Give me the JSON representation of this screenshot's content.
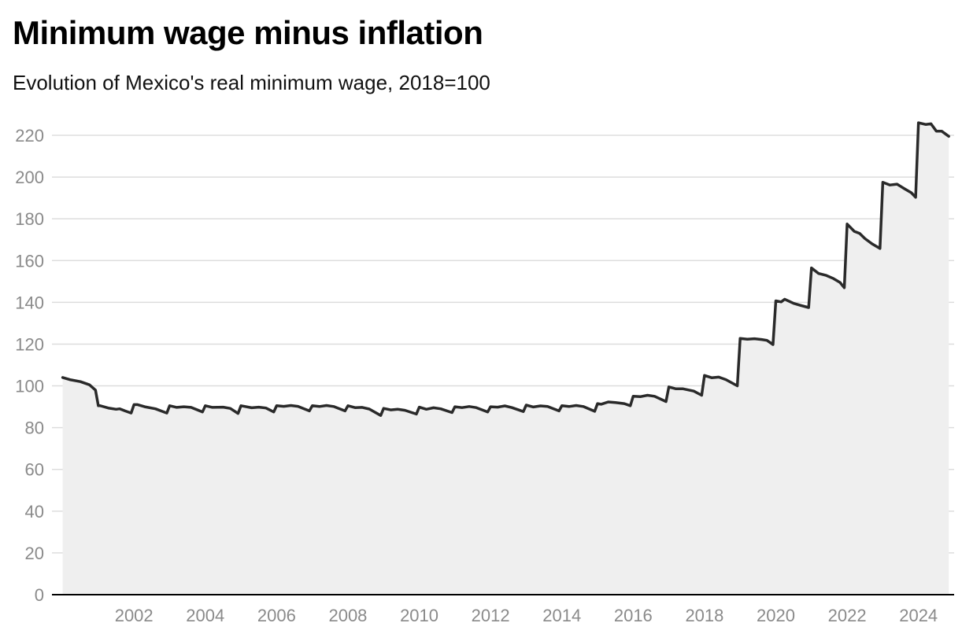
{
  "chart_data": {
    "type": "line",
    "title": "Minimum wage minus inflation",
    "subtitle": "Evolution of Mexico's real minimum wage, 2018=100",
    "xlabel": "",
    "ylabel": "",
    "xlim": [
      1999.7,
      2025.0
    ],
    "ylim": [
      0,
      220
    ],
    "y_ticks": [
      0,
      20,
      40,
      60,
      80,
      100,
      120,
      140,
      160,
      180,
      200,
      220
    ],
    "x_ticks": [
      2002,
      2004,
      2006,
      2008,
      2010,
      2012,
      2014,
      2016,
      2018,
      2020,
      2022,
      2024
    ],
    "grid": true,
    "legend": "none",
    "area_fill": true,
    "colors": {
      "line": "#2a2a2a",
      "fill": "#efefef",
      "grid": "#dddddd",
      "axis": "#000000",
      "tick_text": "#8a8a8a"
    },
    "series": [
      {
        "values_as_year_value_pairs": true,
        "points": [
          [
            2000.0,
            104
          ],
          [
            2000.2,
            103
          ],
          [
            2000.5,
            102
          ],
          [
            2000.75,
            100.5
          ],
          [
            2000.92,
            98
          ],
          [
            2001.0,
            90.5
          ],
          [
            2001.05,
            90.5
          ],
          [
            2001.3,
            89.3
          ],
          [
            2001.5,
            88.8
          ],
          [
            2001.6,
            89
          ],
          [
            2001.75,
            88
          ],
          [
            2001.92,
            87
          ],
          [
            2002.0,
            91
          ],
          [
            2002.1,
            91
          ],
          [
            2002.3,
            90
          ],
          [
            2002.6,
            89
          ],
          [
            2002.92,
            87
          ],
          [
            2003.0,
            90.5
          ],
          [
            2003.2,
            89.7
          ],
          [
            2003.4,
            90
          ],
          [
            2003.6,
            89.7
          ],
          [
            2003.92,
            87.5
          ],
          [
            2004.0,
            90.5
          ],
          [
            2004.2,
            89.7
          ],
          [
            2004.5,
            89.8
          ],
          [
            2004.7,
            89.2
          ],
          [
            2004.92,
            86.8
          ],
          [
            2005.0,
            90.5
          ],
          [
            2005.3,
            89.5
          ],
          [
            2005.5,
            89.8
          ],
          [
            2005.7,
            89.4
          ],
          [
            2005.92,
            87.5
          ],
          [
            2006.0,
            90.5
          ],
          [
            2006.2,
            90.2
          ],
          [
            2006.4,
            90.6
          ],
          [
            2006.6,
            90.2
          ],
          [
            2006.92,
            88
          ],
          [
            2007.0,
            90.5
          ],
          [
            2007.2,
            90.1
          ],
          [
            2007.4,
            90.6
          ],
          [
            2007.6,
            90.1
          ],
          [
            2007.92,
            88
          ],
          [
            2008.0,
            90.5
          ],
          [
            2008.2,
            89.6
          ],
          [
            2008.4,
            89.7
          ],
          [
            2008.6,
            88.9
          ],
          [
            2008.92,
            85.8
          ],
          [
            2009.0,
            89.2
          ],
          [
            2009.2,
            88.5
          ],
          [
            2009.4,
            88.8
          ],
          [
            2009.6,
            88.3
          ],
          [
            2009.92,
            86.5
          ],
          [
            2010.0,
            89.8
          ],
          [
            2010.2,
            88.8
          ],
          [
            2010.4,
            89.5
          ],
          [
            2010.6,
            89
          ],
          [
            2010.92,
            87.2
          ],
          [
            2011.0,
            90
          ],
          [
            2011.2,
            89.6
          ],
          [
            2011.4,
            90.1
          ],
          [
            2011.6,
            89.6
          ],
          [
            2011.92,
            87.5
          ],
          [
            2012.0,
            90
          ],
          [
            2012.2,
            89.8
          ],
          [
            2012.4,
            90.4
          ],
          [
            2012.6,
            89.6
          ],
          [
            2012.92,
            87.7
          ],
          [
            2013.0,
            90.8
          ],
          [
            2013.2,
            89.9
          ],
          [
            2013.4,
            90.4
          ],
          [
            2013.6,
            90.1
          ],
          [
            2013.92,
            88
          ],
          [
            2014.0,
            90.5
          ],
          [
            2014.2,
            90.1
          ],
          [
            2014.4,
            90.6
          ],
          [
            2014.6,
            90.1
          ],
          [
            2014.92,
            87.8
          ],
          [
            2015.0,
            91.5
          ],
          [
            2015.1,
            91.2
          ],
          [
            2015.3,
            92.3
          ],
          [
            2015.5,
            92
          ],
          [
            2015.75,
            91.5
          ],
          [
            2015.92,
            90.5
          ],
          [
            2016.0,
            95
          ],
          [
            2016.2,
            94.8
          ],
          [
            2016.4,
            95.5
          ],
          [
            2016.6,
            95
          ],
          [
            2016.92,
            92.5
          ],
          [
            2017.0,
            99.5
          ],
          [
            2017.2,
            98.6
          ],
          [
            2017.4,
            98.6
          ],
          [
            2017.7,
            97.5
          ],
          [
            2017.92,
            95.5
          ],
          [
            2018.0,
            105
          ],
          [
            2018.2,
            103.9
          ],
          [
            2018.4,
            104.2
          ],
          [
            2018.6,
            103
          ],
          [
            2018.92,
            100
          ],
          [
            2019.0,
            122.7
          ],
          [
            2019.2,
            122.3
          ],
          [
            2019.4,
            122.6
          ],
          [
            2019.6,
            122.2
          ],
          [
            2019.75,
            121.8
          ],
          [
            2019.92,
            119.8
          ],
          [
            2020.0,
            140.7
          ],
          [
            2020.15,
            140.2
          ],
          [
            2020.25,
            141.5
          ],
          [
            2020.5,
            139.5
          ],
          [
            2020.7,
            138.5
          ],
          [
            2020.92,
            137.5
          ],
          [
            2021.0,
            156.5
          ],
          [
            2021.2,
            153.8
          ],
          [
            2021.4,
            153
          ],
          [
            2021.6,
            151.5
          ],
          [
            2021.8,
            149.5
          ],
          [
            2021.92,
            147
          ],
          [
            2022.0,
            177.5
          ],
          [
            2022.2,
            174
          ],
          [
            2022.35,
            173
          ],
          [
            2022.5,
            170.5
          ],
          [
            2022.7,
            168
          ],
          [
            2022.92,
            165.8
          ],
          [
            2023.0,
            197.5
          ],
          [
            2023.2,
            196.2
          ],
          [
            2023.4,
            196.6
          ],
          [
            2023.6,
            194.5
          ],
          [
            2023.8,
            192.5
          ],
          [
            2023.92,
            190.3
          ],
          [
            2024.0,
            226
          ],
          [
            2024.2,
            225.2
          ],
          [
            2024.35,
            225.5
          ],
          [
            2024.5,
            222
          ],
          [
            2024.65,
            222
          ],
          [
            2024.85,
            219.5
          ]
        ]
      }
    ]
  }
}
